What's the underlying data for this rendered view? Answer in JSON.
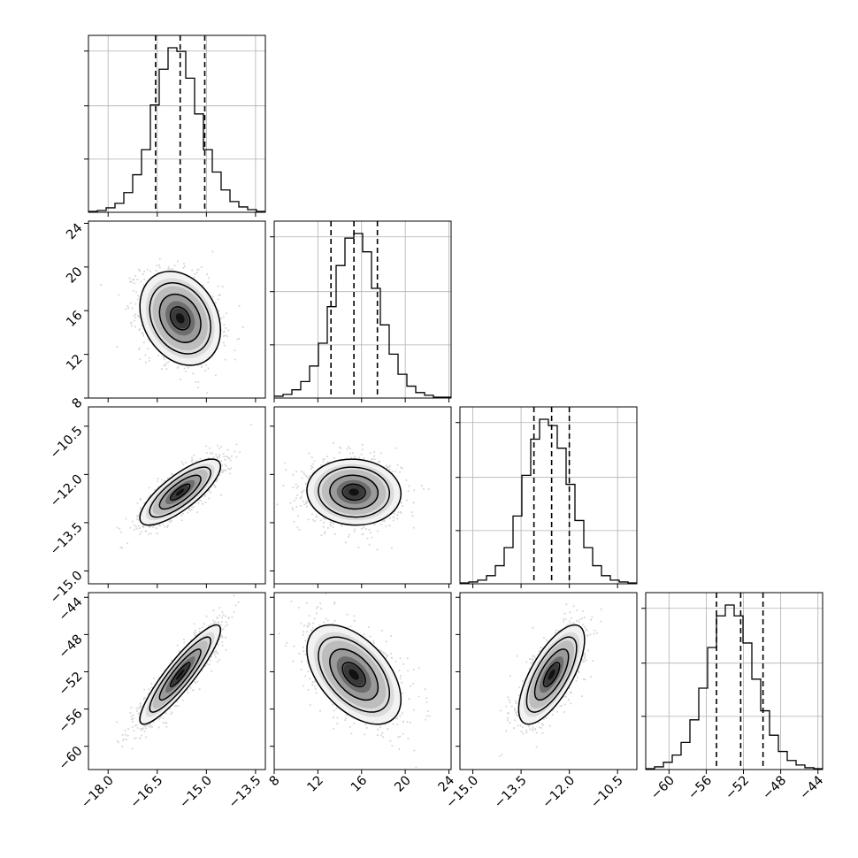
{
  "chart_data": {
    "type": "corner",
    "grid": true,
    "params": [
      {
        "id": "p1",
        "range": [
          -18.6,
          -13.2
        ],
        "ticks": [
          -18.0,
          -16.5,
          -15.0,
          -13.5
        ],
        "tick_labels": [
          "−18.0",
          "−16.5",
          "−15.0",
          "−13.5"
        ],
        "mean": -15.8,
        "std": 0.6,
        "quantiles": [
          -16.55,
          -15.8,
          -15.05
        ]
      },
      {
        "id": "p2",
        "range": [
          8.0,
          24.2
        ],
        "ticks": [
          8,
          12,
          16,
          20,
          24
        ],
        "tick_labels": [
          "8",
          "12",
          "16",
          "20",
          "24"
        ],
        "mean": 15.3,
        "std": 2.1,
        "quantiles": [
          13.2,
          15.3,
          17.45
        ]
      },
      {
        "id": "p3",
        "range": [
          -15.4,
          -9.9
        ],
        "ticks": [
          -15.0,
          -13.5,
          -12.0,
          -10.5
        ],
        "tick_labels": [
          "−15.0",
          "−13.5",
          "−12.0",
          "−10.5"
        ],
        "mean": -12.55,
        "std": 0.5,
        "quantiles": [
          -13.1,
          -12.55,
          -12.0
        ]
      },
      {
        "id": "p4",
        "range": [
          -62.5,
          -43.5
        ],
        "ticks": [
          -60,
          -56,
          -52,
          -48,
          -44
        ],
        "tick_labels": [
          "−60",
          "−56",
          "−52",
          "−48",
          "−44"
        ],
        "mean": -52.3,
        "std": 2.6,
        "quantiles": [
          -54.9,
          -52.3,
          -49.9
        ]
      }
    ],
    "correlations": {
      "1-0": -0.25,
      "2-0": 0.78,
      "2-1": -0.05,
      "3-0": 0.9,
      "3-1": -0.5,
      "3-2": 0.7
    },
    "histograms": [
      {
        "param": "p1",
        "bins": [
          -18.6,
          -18.33,
          -18.06,
          -17.79,
          -17.52,
          -17.25,
          -16.98,
          -16.71,
          -16.44,
          -16.17,
          -15.9,
          -15.63,
          -15.36,
          -15.09,
          -14.82,
          -14.55,
          -14.28,
          -14.01,
          -13.74,
          -13.47,
          -13.2
        ],
        "counts": [
          1,
          2,
          5,
          10,
          22,
          42,
          70,
          120,
          160,
          184,
          180,
          150,
          110,
          70,
          45,
          25,
          12,
          6,
          3,
          1
        ]
      },
      {
        "param": "p2",
        "bins": [
          8.0,
          8.81,
          9.62,
          10.43,
          11.24,
          12.05,
          12.86,
          13.67,
          14.48,
          15.29,
          16.1,
          16.91,
          17.72,
          18.53,
          19.34,
          20.15,
          20.96,
          21.77,
          22.58,
          23.39,
          24.2
        ],
        "counts": [
          2,
          4,
          9,
          18,
          35,
          60,
          100,
          145,
          175,
          180,
          160,
          120,
          80,
          48,
          26,
          13,
          6,
          3,
          1,
          1
        ]
      },
      {
        "param": "p3",
        "bins": [
          -15.4,
          -15.125,
          -14.85,
          -14.575,
          -14.3,
          -14.025,
          -13.75,
          -13.475,
          -13.2,
          -12.925,
          -12.65,
          -12.375,
          -12.1,
          -11.825,
          -11.55,
          -11.275,
          -11.0,
          -10.725,
          -10.45,
          -10.175,
          -9.9
        ],
        "counts": [
          1,
          2,
          4,
          9,
          20,
          40,
          75,
          120,
          160,
          182,
          175,
          150,
          110,
          70,
          40,
          20,
          9,
          4,
          2,
          1
        ]
      },
      {
        "param": "p4",
        "bins": [
          -62.5,
          -61.55,
          -60.6,
          -59.65,
          -58.7,
          -57.75,
          -56.8,
          -55.85,
          -54.9,
          -53.95,
          -53.0,
          -52.05,
          -51.1,
          -50.15,
          -49.2,
          -48.25,
          -47.3,
          -46.35,
          -45.4,
          -44.45,
          -43.5
        ],
        "counts": [
          1,
          3,
          8,
          16,
          30,
          55,
          90,
          135,
          170,
          182,
          170,
          140,
          100,
          65,
          38,
          20,
          10,
          5,
          2,
          1
        ]
      }
    ]
  }
}
